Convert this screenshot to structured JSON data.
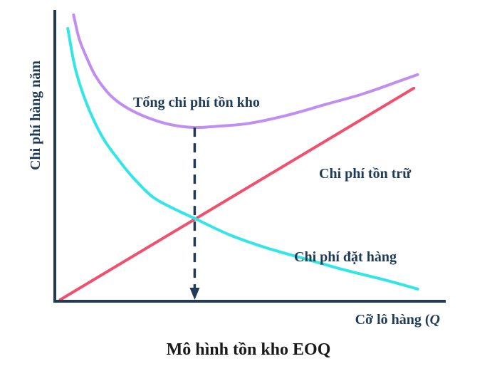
{
  "caption": "Mô hình tồn kho EOQ",
  "chart_data": {
    "type": "line",
    "title": "",
    "xlabel": "Cỡ lô hàng (Q)",
    "xlabel_main": "Cỡ lô hàng (",
    "xlabel_var": "Q",
    "ylabel": "Chi phí hàng năm",
    "grid": false,
    "xlim": [
      0,
      10
    ],
    "ylim": [
      0,
      10
    ],
    "eoq_marker": {
      "x": 3.6,
      "y": 3.0
    },
    "series": [
      {
        "name": "Tổng chi phí tồn kho",
        "color": "#c08ef0",
        "x": [
          0.45,
          0.6,
          0.8,
          1.0,
          1.3,
          1.6,
          2.0,
          2.5,
          3.0,
          3.6,
          4.2,
          5.0,
          6.0,
          7.0,
          8.0,
          9.0,
          9.4
        ],
        "y": [
          10.5,
          9.6,
          8.9,
          8.3,
          7.7,
          7.3,
          6.95,
          6.65,
          6.45,
          6.35,
          6.4,
          6.5,
          6.8,
          7.2,
          7.6,
          8.1,
          8.3
        ]
      },
      {
        "name": "Chi phí tồn trữ",
        "color": "#f0506e",
        "x": [
          0.1,
          9.3
        ],
        "y": [
          0.0,
          7.8
        ]
      },
      {
        "name": "Chi phí đặt hàng",
        "color": "#33e6e6",
        "x": [
          0.3,
          0.5,
          0.8,
          1.2,
          1.6,
          2.0,
          2.5,
          3.0,
          3.6,
          4.5,
          5.5,
          6.5,
          7.5,
          8.5,
          9.4
        ],
        "y": [
          10.0,
          8.5,
          7.2,
          6.0,
          5.2,
          4.5,
          3.8,
          3.4,
          3.0,
          2.4,
          1.9,
          1.5,
          1.1,
          0.75,
          0.4
        ]
      }
    ],
    "labels": {
      "total": "Tổng chi phí tồn kho",
      "holding": "Chi phí tồn trữ",
      "ordering": "Chi phí đặt hàng"
    }
  }
}
